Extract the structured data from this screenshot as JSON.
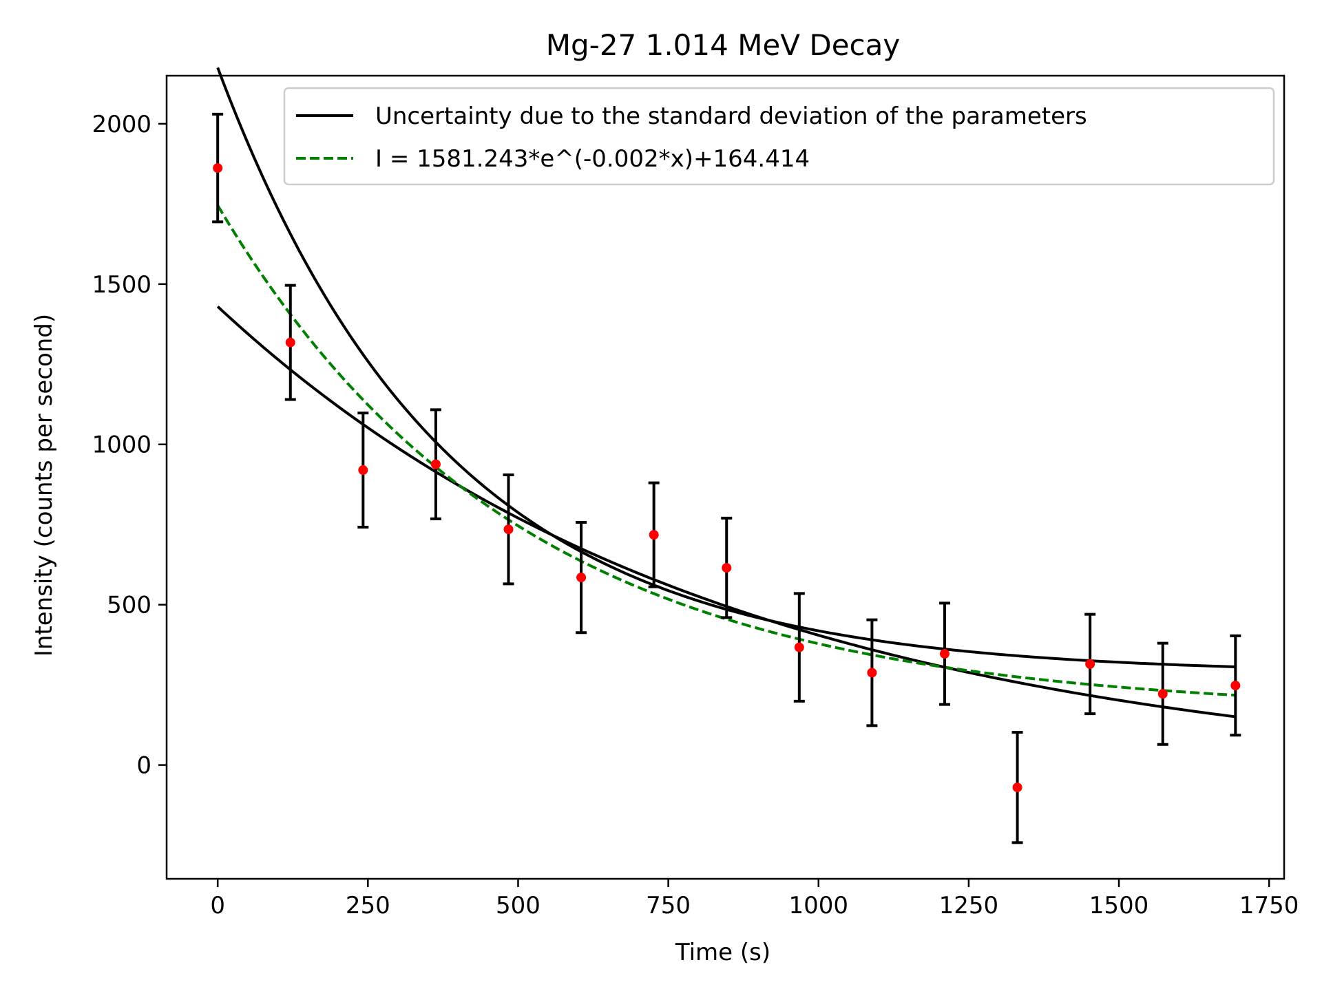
{
  "chart_data": {
    "type": "scatter",
    "title": "Mg-27 1.014 MeV Decay",
    "xlabel": "Time (s)",
    "ylabel": "Intensity (counts per second)",
    "xlim": [
      -85,
      1775
    ],
    "ylim": [
      -355,
      2150
    ],
    "xticks": [
      0,
      250,
      500,
      750,
      1000,
      1250,
      1500,
      1750
    ],
    "yticks": [
      0,
      500,
      1000,
      1500,
      2000
    ],
    "grid": false,
    "legend_position": "top-right",
    "legend": [
      {
        "label": "Uncertainty due to the standard deviation of the parameters",
        "style": "solid",
        "color": "#000000"
      },
      {
        "label": "I = 1581.243*e^(-0.002*x)+164.414",
        "style": "dashed",
        "color": "#008000"
      }
    ],
    "points": {
      "color": "#ff0000",
      "errorbar_color": "#000000",
      "x": [
        0,
        121,
        242,
        363,
        484,
        605,
        726,
        847,
        968,
        1089,
        1210,
        1331,
        1452,
        1573,
        1694
      ],
      "y": [
        1862,
        1318,
        920,
        938,
        735,
        585,
        718,
        615,
        367,
        288,
        347,
        -70,
        315,
        222,
        248
      ],
      "yerr": [
        168,
        178,
        178,
        170,
        170,
        172,
        162,
        155,
        168,
        165,
        158,
        172,
        155,
        158,
        155
      ]
    },
    "fit": {
      "A": 1581.243,
      "k": 0.002,
      "C": 164.414,
      "x_range": [
        0,
        1694
      ]
    },
    "uncertainty_bounds": [
      {
        "A": 1890,
        "k": 0.00265,
        "C": 285,
        "x_range": [
          0,
          1694
        ]
      },
      {
        "A": 1480,
        "k": 0.00118,
        "C": -50,
        "x_range": [
          0,
          1694
        ]
      }
    ]
  }
}
